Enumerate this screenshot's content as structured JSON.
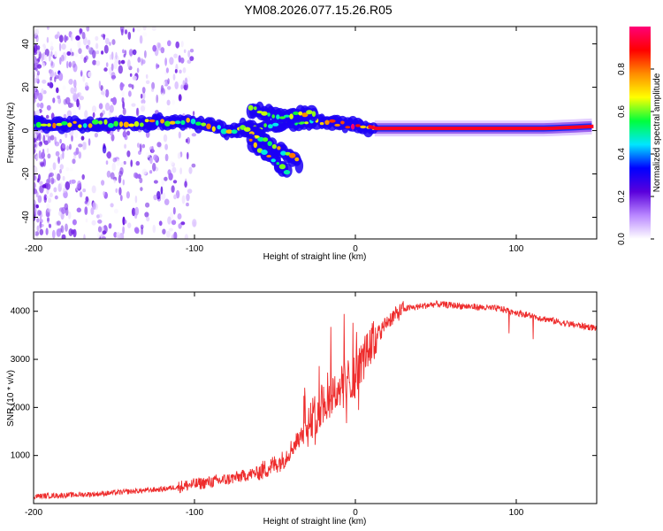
{
  "title": "YM08.2026.077.15.26.R05",
  "chart_data": [
    {
      "type": "heatmap",
      "name": "spectrogram",
      "xlabel": "Height of straight line (km)",
      "ylabel": "Frequency (Hz)",
      "xlim": [
        -200,
        150
      ],
      "ylim": [
        -50,
        48
      ],
      "xticks": [
        -200,
        -100,
        0,
        100
      ],
      "xtick_labels": [
        "-200",
        "-100",
        "0",
        "100"
      ],
      "yticks": [
        -40,
        -20,
        0,
        20,
        40
      ],
      "ytick_labels": [
        "-40",
        "-20",
        "0",
        "20",
        "40"
      ],
      "colorbar": {
        "label": "Normalized spectral amplitude",
        "range": [
          0,
          1
        ],
        "ticks": [
          0.0,
          0.2,
          0.4,
          0.6,
          0.8
        ],
        "tick_labels": [
          "0.0",
          "0.2",
          "0.4",
          "0.6",
          "0.8"
        ],
        "colormap": [
          "#ffffff",
          "#b987ff",
          "#5a00dc",
          "#0000ff",
          "#00e6ff",
          "#00ff3c",
          "#ffff00",
          "#ff8c00",
          "#ff0000",
          "#ff0078"
        ]
      },
      "ridges": [
        {
          "label": "main",
          "points": [
            [
              -200,
              3
            ],
            [
              -150,
              3
            ],
            [
              -120,
              4
            ],
            [
              -100,
              4
            ],
            [
              -80,
              0
            ],
            [
              -60,
              1
            ],
            [
              -40,
              4
            ],
            [
              -20,
              4
            ],
            [
              -10,
              3
            ],
            [
              0,
              2
            ],
            [
              12,
              1
            ]
          ]
        },
        {
          "label": "branch-upper",
          "points": [
            [
              -65,
              10
            ],
            [
              -55,
              8
            ],
            [
              -45,
              6
            ],
            [
              -35,
              8
            ],
            [
              -25,
              8
            ]
          ]
        },
        {
          "label": "branch-lower-1",
          "points": [
            [
              -70,
              2
            ],
            [
              -60,
              -3
            ],
            [
              -50,
              -8
            ],
            [
              -40,
              -12
            ],
            [
              -35,
              -15
            ]
          ]
        },
        {
          "label": "branch-lower-2",
          "points": [
            [
              -65,
              -5
            ],
            [
              -55,
              -11
            ],
            [
              -45,
              -17
            ],
            [
              -42,
              -20
            ]
          ]
        },
        {
          "label": "tail",
          "points": [
            [
              12,
              1
            ],
            [
              40,
              1
            ],
            [
              80,
              1
            ],
            [
              120,
              1
            ],
            [
              150,
              2
            ]
          ]
        }
      ]
    },
    {
      "type": "line",
      "name": "snr",
      "xlabel": "Height of straight line (km)",
      "ylabel": "SNR (10 * v/v)",
      "xlim": [
        -200,
        150
      ],
      "ylim": [
        0,
        4400
      ],
      "xticks": [
        -200,
        -100,
        0,
        100
      ],
      "xtick_labels": [
        "-200",
        "-100",
        "0",
        "100"
      ],
      "yticks": [
        1000,
        2000,
        3000,
        4000
      ],
      "ytick_labels": [
        "1000",
        "2000",
        "3000",
        "4000"
      ],
      "color": "#ee2c2c",
      "trend": [
        [
          -200,
          150
        ],
        [
          -160,
          200
        ],
        [
          -120,
          300
        ],
        [
          -100,
          400
        ],
        [
          -80,
          500
        ],
        [
          -60,
          650
        ],
        [
          -45,
          900
        ],
        [
          -30,
          1600
        ],
        [
          -20,
          2100
        ],
        [
          -10,
          2400
        ],
        [
          0,
          2700
        ],
        [
          10,
          3300
        ],
        [
          20,
          3800
        ],
        [
          30,
          4050
        ],
        [
          50,
          4150
        ],
        [
          70,
          4100
        ],
        [
          90,
          4050
        ],
        [
          110,
          3900
        ],
        [
          130,
          3750
        ],
        [
          150,
          3650
        ]
      ]
    }
  ]
}
